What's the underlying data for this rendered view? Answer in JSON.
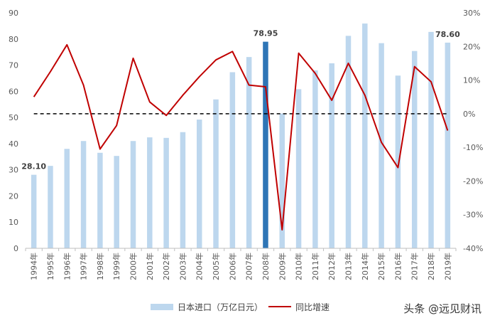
{
  "chart_data": {
    "type": "bar+line",
    "categories": [
      "1994年",
      "1995年",
      "1996年",
      "1997年",
      "1998年",
      "1999年",
      "2000年",
      "2001年",
      "2002年",
      "2003年",
      "2004年",
      "2005年",
      "2006年",
      "2007年",
      "2008年",
      "2009年",
      "2010年",
      "2011年",
      "2012年",
      "2013年",
      "2014年",
      "2015年",
      "2016年",
      "2017年",
      "2018年",
      "2019年"
    ],
    "series": [
      {
        "name": "日本进口（万亿日元）",
        "type": "bar",
        "axis": "left",
        "values": [
          28.1,
          31.5,
          38.0,
          41.0,
          36.5,
          35.3,
          41.0,
          42.4,
          42.2,
          44.4,
          49.2,
          56.9,
          67.3,
          73.1,
          78.95,
          51.5,
          60.8,
          68.0,
          70.7,
          81.2,
          85.9,
          78.4,
          66.0,
          75.4,
          82.7,
          78.6
        ]
      },
      {
        "name": "同比增速",
        "type": "line",
        "axis": "right",
        "values": [
          5.0,
          12.5,
          20.5,
          8.5,
          -10.5,
          -3.5,
          16.5,
          3.5,
          -0.5,
          5.5,
          11.0,
          16.0,
          18.5,
          8.5,
          8.0,
          -34.5,
          18.0,
          12.0,
          4.0,
          15.0,
          5.5,
          -8.5,
          -16.0,
          14.0,
          9.5,
          -5.0
        ]
      }
    ],
    "highlight_index": 14,
    "data_labels": [
      {
        "index": 0,
        "text": "28.10"
      },
      {
        "index": 14,
        "text": "78.95"
      },
      {
        "index": 25,
        "text": "78.60"
      }
    ],
    "y_left": {
      "min": 0,
      "max": 90,
      "ticks": [
        "0",
        "10",
        "20",
        "30",
        "40",
        "50",
        "60",
        "70",
        "80",
        "90"
      ]
    },
    "y_right": {
      "min": -40,
      "max": 30,
      "ticks": [
        "-40%",
        "-30%",
        "-20%",
        "-10%",
        "0%",
        "10%",
        "20%",
        "30%"
      ]
    },
    "zero_line": "dashed",
    "grid": false,
    "legend_position": "bottom",
    "colors": {
      "bar": "#bdd7ee",
      "bar_highlight": "#2e75b6",
      "line": "#c00000",
      "zero_line": "#000000"
    }
  },
  "legend": {
    "bar_label": "日本进口（万亿日元）",
    "line_label": "同比增速"
  },
  "watermark": "头条 @远见财讯"
}
